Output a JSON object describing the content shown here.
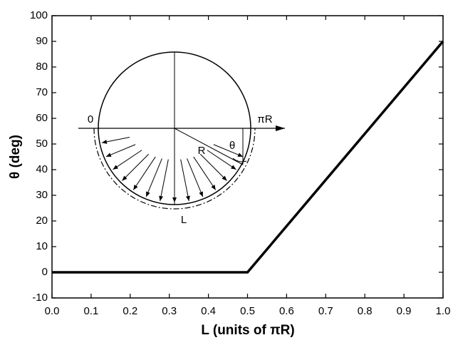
{
  "chart_data": {
    "type": "line",
    "xlabel": "L (units of πR)",
    "ylabel": "θ (deg)",
    "x": [
      0,
      0.5,
      1.0
    ],
    "values": [
      0,
      0,
      90
    ],
    "color": "#000000",
    "xlim": [
      0,
      1.0
    ],
    "ylim": [
      -10,
      100
    ],
    "xticks": [
      {
        "value": 0,
        "label": "0.0"
      },
      {
        "value": 0.1,
        "label": "0.1"
      },
      {
        "value": 0.2,
        "label": "0.2"
      },
      {
        "value": 0.3,
        "label": "0.3"
      },
      {
        "value": 0.4,
        "label": "0.4"
      },
      {
        "value": 0.5,
        "label": "0.5"
      },
      {
        "value": 0.6,
        "label": "0.6"
      },
      {
        "value": 0.7,
        "label": "0.7"
      },
      {
        "value": 0.8,
        "label": "0.8"
      },
      {
        "value": 0.9,
        "label": "0.9"
      },
      {
        "value": 1.0,
        "label": "1.0"
      }
    ],
    "yticks": [
      -10,
      0,
      10,
      20,
      30,
      40,
      50,
      60,
      70,
      80,
      90,
      100
    ],
    "inset_labels": {
      "start": "0",
      "end": "πR",
      "radius": "R",
      "angle": "θ",
      "arc": "L"
    }
  }
}
